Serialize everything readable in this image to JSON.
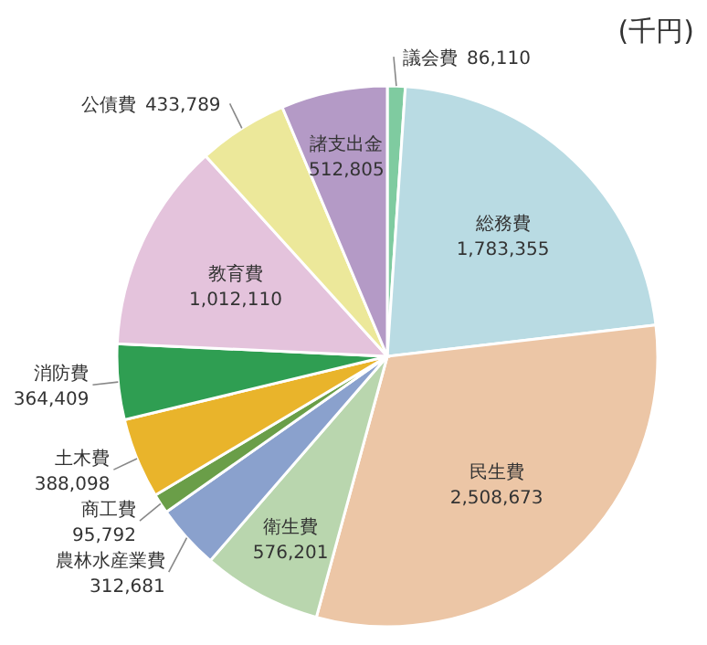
{
  "chart_data": {
    "type": "pie",
    "categories": [
      "議会費",
      "総務費",
      "民生費",
      "衛生費",
      "農林水産業費",
      "商工費",
      "土木費",
      "消防費",
      "教育費",
      "公債費",
      "諸支出金"
    ],
    "values": [
      86110,
      1783355,
      2508673,
      576201,
      312681,
      95792,
      388098,
      364409,
      1012110,
      433789,
      512805
    ],
    "colors": [
      "#7fcba0",
      "#b9dbe3",
      "#ecc6a6",
      "#b9d6ae",
      "#8aa1cd",
      "#6a9e48",
      "#e9b42b",
      "#2f9e52",
      "#e4c3dc",
      "#ece89a",
      "#b49ac6"
    ],
    "value_labels": [
      "86,110",
      "1,783,355",
      "2,508,673",
      "576,201",
      "312,681",
      "95,792",
      "388,098",
      "364,409",
      "1,012,110",
      "433,789",
      "512,805"
    ],
    "annotations": [
      "(千円)"
    ]
  }
}
